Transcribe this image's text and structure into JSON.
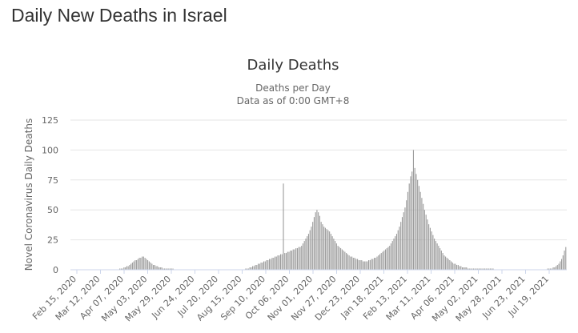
{
  "page": {
    "heading": "Daily New Deaths in Israel"
  },
  "chart_data": {
    "type": "bar",
    "title": "Daily Deaths",
    "subtitle_lines": [
      "Deaths per Day",
      "Data as of 0:00 GMT+8"
    ],
    "xlabel": "",
    "ylabel": "Novel Coronavirus Daily Deaths",
    "ylim": [
      0,
      125
    ],
    "yticks": [
      0,
      25,
      50,
      75,
      100,
      125
    ],
    "grid": true,
    "legend": "none",
    "bar_color": "#999999",
    "x_tick_labels": [
      "Feb 15, 2020",
      "Mar 12, 2020",
      "Apr 07, 2020",
      "May 03, 2020",
      "May 29, 2020",
      "Jun 24, 2020",
      "Jul 20, 2020",
      "Aug 15, 2020",
      "Sep 10, 2020",
      "Oct 06, 2020",
      "Nov 01, 2020",
      "Nov 27, 2020",
      "Dec 23, 2020",
      "Jan 18, 2021",
      "Feb 13, 2021",
      "Mar 11, 2021",
      "Apr 06, 2021",
      "May 02, 2021",
      "May 28, 2021",
      "Jun 23, 2021",
      "Jul 19, 2021"
    ],
    "series": [
      {
        "values": [
          0,
          0,
          0,
          0,
          0,
          0,
          0,
          0,
          0,
          0,
          0,
          0,
          0,
          0,
          0,
          0,
          0,
          0,
          0,
          0,
          0,
          0,
          0,
          0,
          0,
          0,
          0,
          0,
          0,
          0,
          0,
          0,
          0,
          0,
          0,
          1,
          1,
          1,
          2,
          2,
          3,
          3,
          4,
          5,
          6,
          7,
          8,
          8,
          9,
          10,
          10,
          11,
          11,
          10,
          9,
          8,
          7,
          6,
          5,
          4,
          4,
          3,
          3,
          2,
          2,
          2,
          1,
          1,
          1,
          1,
          1,
          1,
          1,
          1,
          0,
          0,
          0,
          0,
          0,
          0,
          0,
          0,
          0,
          0,
          0,
          0,
          0,
          0,
          0,
          0,
          0,
          0,
          0,
          0,
          0,
          0,
          0,
          0,
          0,
          0,
          0,
          0,
          0,
          0,
          0,
          0,
          0,
          0,
          0,
          0,
          0,
          0,
          0,
          0,
          0,
          0,
          0,
          0,
          0,
          0,
          0,
          0,
          0,
          0,
          0,
          1,
          1,
          1,
          2,
          2,
          3,
          3,
          4,
          4,
          5,
          5,
          6,
          6,
          7,
          7,
          8,
          8,
          9,
          9,
          10,
          10,
          11,
          11,
          12,
          12,
          13,
          13,
          72,
          14,
          14,
          15,
          15,
          16,
          16,
          17,
          17,
          18,
          18,
          19,
          19,
          20,
          22,
          24,
          26,
          28,
          30,
          33,
          36,
          40,
          44,
          48,
          50,
          48,
          45,
          40,
          38,
          36,
          35,
          34,
          33,
          32,
          30,
          28,
          26,
          24,
          22,
          20,
          19,
          18,
          17,
          16,
          15,
          14,
          13,
          12,
          11,
          11,
          10,
          10,
          9,
          9,
          8,
          8,
          8,
          7,
          7,
          7,
          7,
          8,
          8,
          9,
          9,
          10,
          10,
          11,
          12,
          13,
          14,
          15,
          16,
          17,
          18,
          19,
          20,
          22,
          24,
          26,
          28,
          30,
          33,
          36,
          40,
          44,
          48,
          52,
          58,
          65,
          72,
          78,
          82,
          100,
          85,
          80,
          75,
          70,
          65,
          60,
          55,
          50,
          46,
          42,
          38,
          35,
          32,
          29,
          26,
          24,
          22,
          20,
          18,
          16,
          14,
          12,
          11,
          10,
          9,
          8,
          7,
          6,
          5,
          5,
          4,
          4,
          3,
          3,
          2,
          2,
          2,
          2,
          1,
          1,
          1,
          1,
          1,
          1,
          1,
          1,
          1,
          1,
          1,
          1,
          1,
          1,
          1,
          1,
          1,
          1,
          1,
          0,
          0,
          0,
          0,
          0,
          0,
          0,
          0,
          0,
          0,
          0,
          0,
          0,
          0,
          0,
          0,
          0,
          0,
          0,
          0,
          0,
          0,
          0,
          0,
          0,
          0,
          0,
          0,
          0,
          0,
          0,
          0,
          0,
          0,
          0,
          0,
          0,
          0,
          1,
          1,
          1,
          1,
          2,
          2,
          3,
          4,
          5,
          7,
          9,
          12,
          16,
          19
        ]
      }
    ]
  }
}
